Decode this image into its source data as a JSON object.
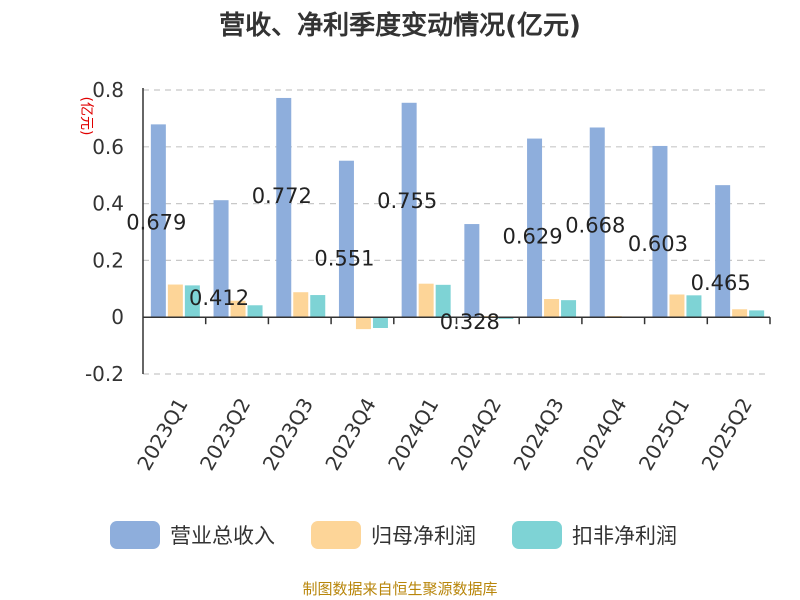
{
  "chart_data": {
    "type": "bar",
    "title": "营收、净利季度变动情况(亿元)",
    "unit_label": "(亿元)",
    "categories": [
      "2023Q1",
      "2023Q2",
      "2023Q3",
      "2023Q4",
      "2024Q1",
      "2024Q2",
      "2024Q3",
      "2024Q4",
      "2025Q1",
      "2025Q2"
    ],
    "series": [
      {
        "name": "营业总收入",
        "color": "#8eaedc",
        "values": [
          0.679,
          0.412,
          0.772,
          0.551,
          0.755,
          0.328,
          0.629,
          0.668,
          0.603,
          0.465
        ]
      },
      {
        "name": "归母净利润",
        "color": "#fdd598",
        "values": [
          0.115,
          0.058,
          0.088,
          -0.042,
          0.118,
          0.004,
          0.064,
          0.004,
          0.08,
          0.028
        ]
      },
      {
        "name": "扣非净利润",
        "color": "#7ed3d5",
        "values": [
          0.112,
          0.042,
          0.078,
          -0.038,
          0.114,
          -0.006,
          0.06,
          0.002,
          0.077,
          0.024
        ]
      }
    ],
    "data_labels": [
      "0.679",
      "0.412",
      "0.772",
      "0.551",
      "0.755",
      "0.328",
      "0.629",
      "0.668",
      "0.603",
      "0.465"
    ],
    "yticks": [
      "0.8",
      "0.6",
      "0.4",
      "0.2",
      "0",
      "-0.2"
    ],
    "ytick_values": [
      0.8,
      0.6,
      0.4,
      0.2,
      0,
      -0.2
    ],
    "ylim": [
      -0.2,
      0.8
    ],
    "grid": true,
    "legend_position": "bottom"
  },
  "source_text": "制图数据来自恒生聚源数据库"
}
